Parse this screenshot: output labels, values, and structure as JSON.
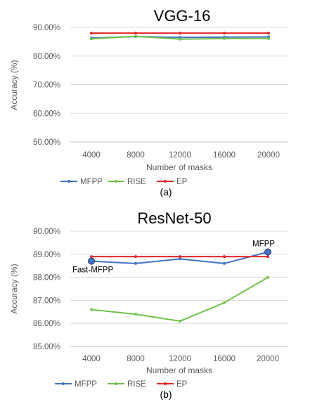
{
  "chart_data": [
    {
      "type": "line",
      "title": "VGG-16",
      "caption": "(a)",
      "xlabel": "Number of masks",
      "ylabel": "Accuracy (%)",
      "categories": [
        "4000",
        "8000",
        "12000",
        "16000",
        "20000"
      ],
      "yticks": [
        "50.00%",
        "60.00%",
        "70.00%",
        "80.00%",
        "90.00%"
      ],
      "ylim": [
        50,
        90
      ],
      "grid": true,
      "legend_position": "bottom",
      "series": [
        {
          "name": "MFPP",
          "color": "#4472C4",
          "values": [
            86.3,
            86.8,
            86.5,
            86.6,
            86.7
          ]
        },
        {
          "name": "RISE",
          "color": "#70C24A",
          "values": [
            86.0,
            86.9,
            85.9,
            86.1,
            86.1
          ]
        },
        {
          "name": "EP",
          "color": "#E3262A",
          "values": [
            88.0,
            88.0,
            88.0,
            88.0,
            88.0
          ]
        }
      ],
      "annotations": []
    },
    {
      "type": "line",
      "title": "ResNet-50",
      "caption": "(b)",
      "xlabel": "Number of masks",
      "ylabel": "Accuracy (%)",
      "categories": [
        "4000",
        "8000",
        "12000",
        "16000",
        "20000"
      ],
      "yticks": [
        "85.00%",
        "86.00%",
        "87.00%",
        "88.00%",
        "89.00%",
        "90.00%"
      ],
      "ylim": [
        85,
        90
      ],
      "grid": true,
      "legend_position": "bottom",
      "series": [
        {
          "name": "MFPP",
          "color": "#4472C4",
          "values": [
            88.7,
            88.6,
            88.8,
            88.6,
            89.1
          ]
        },
        {
          "name": "RISE",
          "color": "#70C24A",
          "values": [
            86.6,
            86.4,
            86.1,
            86.9,
            88.0
          ]
        },
        {
          "name": "EP",
          "color": "#E3262A",
          "values": [
            88.9,
            88.9,
            88.9,
            88.9,
            88.9
          ]
        }
      ],
      "annotations": [
        {
          "text": "Fast-MFPP",
          "series": "MFPP",
          "index": 0
        },
        {
          "text": "MFPP",
          "series": "MFPP",
          "index": 4
        }
      ]
    }
  ]
}
